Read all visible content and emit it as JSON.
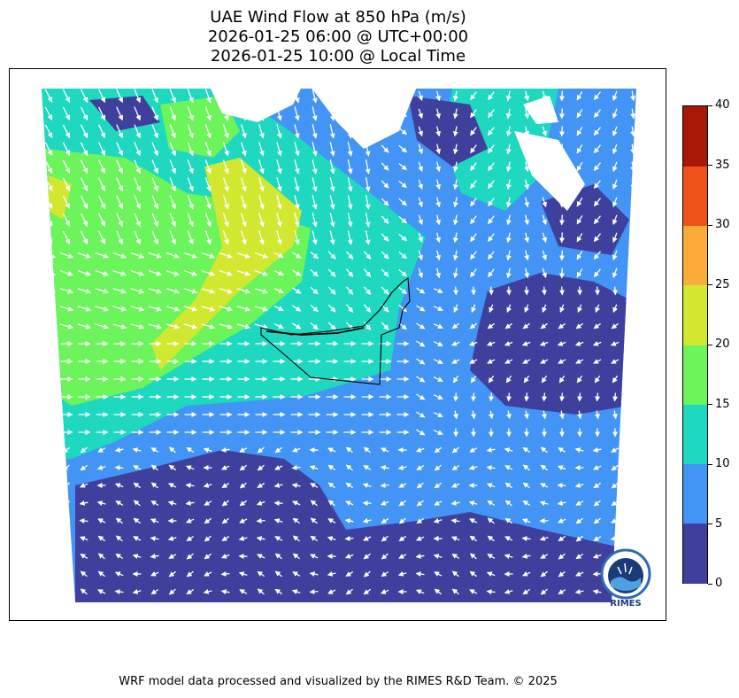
{
  "title": {
    "line1": "UAE Wind Flow at 850 hPa (m/s)",
    "line2": "2026-01-25 06:00 @ UTC+00:00",
    "line3": "2026-01-25 10:00 @ Local Time"
  },
  "colorbar": {
    "levels": [
      0,
      5,
      10,
      15,
      20,
      25,
      30,
      35,
      40
    ],
    "labels": [
      "0",
      "5",
      "10",
      "15",
      "20",
      "25",
      "30",
      "35",
      "40"
    ],
    "colors": [
      "#3f3f9e",
      "#4294f5",
      "#1ed8c0",
      "#6bf55a",
      "#d2e830",
      "#fbac38",
      "#ee5218",
      "#a81806"
    ]
  },
  "logo": {
    "text": "RIMES"
  },
  "footer": "WRF model data processed and visualized by the RIMES R&D Team. © 2025",
  "colors": {
    "arrow": "#ffffff",
    "border": "#000000"
  }
}
